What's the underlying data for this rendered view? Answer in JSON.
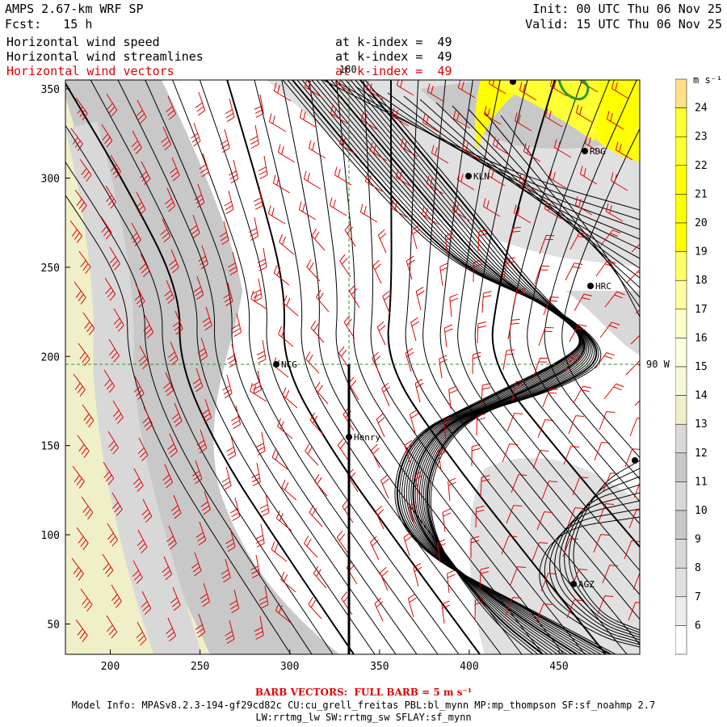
{
  "header": {
    "model_title": "AMPS 2.67-km WRF SP",
    "forecast": "Fcst:   15 h",
    "init": "Init: 00 UTC Thu 06 Nov 25",
    "valid": "Valid: 15 UTC Thu 06 Nov 25",
    "fields": [
      {
        "name": "Horizontal wind speed",
        "level": "at k-index =  49",
        "color": "#000000"
      },
      {
        "name": "Horizontal wind streamlines",
        "level": "at k-index =  49",
        "color": "#000000"
      },
      {
        "name": "Horizontal wind vectors",
        "level": "at k-index =  49",
        "color": "#e00000"
      }
    ]
  },
  "map": {
    "x_ticks": [
      "200",
      "250",
      "300",
      "350",
      "400",
      "450"
    ],
    "y_ticks": [
      "350",
      "300",
      "250",
      "200",
      "150",
      "100",
      "50"
    ],
    "meridian_label": "180",
    "parallel_label": "90 W",
    "stations": [
      {
        "name": "KLN",
        "label": "KLN"
      },
      {
        "name": "RDG",
        "label": "RDG"
      },
      {
        "name": "HRC",
        "label": "HRC"
      },
      {
        "name": "NCG",
        "label": "NCG"
      },
      {
        "name": "Henry",
        "label": "Henry"
      },
      {
        "name": "AGZ",
        "label": "AGZ"
      }
    ]
  },
  "colorbar": {
    "units": "m s⁻¹",
    "labels": [
      "24",
      "23",
      "22",
      "21",
      "20",
      "19",
      "18",
      "17",
      "16",
      "15",
      "14",
      "13",
      "12",
      "11",
      "10",
      "9",
      "8",
      "7",
      "6"
    ],
    "colors": {
      "24": "#ffe08a",
      "23": "#ffff33",
      "22": "#ffff33",
      "21": "#ffff00",
      "20": "#ffff00",
      "19": "#ffff00",
      "18": "#ffff66",
      "17": "#ffffa0",
      "16": "#ffffc8",
      "15": "#ffffe0",
      "14": "#f8f8d8",
      "13": "#f0f0c8",
      "12": "#d8d8d8",
      "11": "#c8c8c8",
      "10": "#d8d8d8",
      "9": "#c8c8c8",
      "8": "#d8d8d8",
      "7": "#e0e0e0",
      "6": "#ececec",
      "bottom": "#ffffff"
    }
  },
  "footer": {
    "barb_note": "BARB VECTORS:  FULL BARB = 5 m s⁻¹",
    "model_info_1": "Model Info: MPASv8.2.3-194-gf29cd82c CU:cu_grell_freitas PBL:bl_mynn MP:mp_thompson SF:sf_noahmp 2.7",
    "model_info_2": "LW:rrtmg_lw SW:rrtmg_sw SFLAY:sf_mynn"
  }
}
